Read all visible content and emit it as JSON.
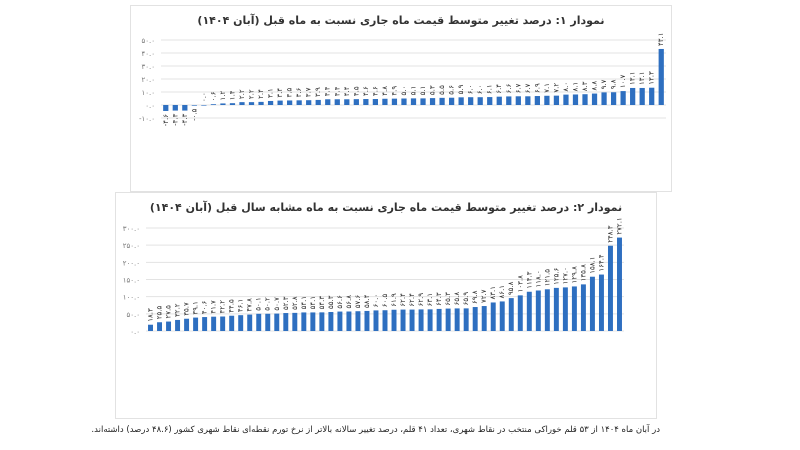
{
  "colors": {
    "bar": "#2e6fc0",
    "grid": "#e3e3e3",
    "axis_text": "#777"
  },
  "chart_data": [
    {
      "type": "bar",
      "title": "نمودار ۱: درصد تغییر متوسط قیمت ماه جاری نسبت به ماه قبل (آبان ۱۴۰۴)",
      "ylim": [
        -10,
        50
      ],
      "yticks": [
        -10,
        0,
        10,
        20,
        30,
        40,
        50
      ],
      "grid": true,
      "data_labels": true,
      "values": [
        -4.6,
        -4.3,
        -4.3,
        -0.5,
        0.0,
        0.6,
        1.2,
        1.4,
        2.2,
        2.2,
        2.4,
        3.1,
        3.4,
        3.5,
        3.6,
        3.7,
        3.9,
        4.4,
        4.4,
        4.4,
        4.5,
        4.6,
        4.6,
        4.8,
        4.9,
        5.0,
        5.1,
        5.1,
        5.3,
        5.5,
        5.6,
        5.9,
        6.0,
        6.0,
        6.1,
        6.4,
        6.6,
        6.7,
        6.7,
        6.9,
        7.1,
        7.2,
        8.0,
        8.1,
        8.3,
        8.8,
        9.7,
        9.8,
        10.7,
        13.1,
        13.1,
        13.3,
        43.1
      ]
    },
    {
      "type": "bar",
      "title": "نمودار ۲: درصد تغییر متوسط قیمت ماه جاری نسبت به ماه مشابه سال قبل (آبان ۱۴۰۴)",
      "ylim": [
        0,
        300
      ],
      "yticks": [
        0,
        50,
        100,
        150,
        200,
        250,
        300
      ],
      "grid": true,
      "data_labels": true,
      "values": [
        18.3,
        25.5,
        27.5,
        32.2,
        35.7,
        39.1,
        40.6,
        41.7,
        42.2,
        44.5,
        46.1,
        47.8,
        50.1,
        50.2,
        50.7,
        52.3,
        52.8,
        54.1,
        54.1,
        54.3,
        55.3,
        56.6,
        56.8,
        57.6,
        58.4,
        60.0,
        60.5,
        61.9,
        62.4,
        62.4,
        62.9,
        63.1,
        64.3,
        65.3,
        65.8,
        65.9,
        69.8,
        72.7,
        83.1,
        86.1,
        95.8,
        103.8,
        114.3,
        118.0,
        121.5,
        125.6,
        127.0,
        129.8,
        135.8,
        158.1,
        164.4,
        248.3,
        272.1
      ]
    }
  ],
  "footnote": "در آبان ماه ۱۴۰۴ از ۵۳ قلم خوراکی منتخب در نقاط شهری، تعداد ۴۱ قلم، درصد تغییر سالانه بالاتر از نرخ تورم نقطه‌ای نقاط شهری کشور (۴۸.۶ درصد) داشته‌اند."
}
